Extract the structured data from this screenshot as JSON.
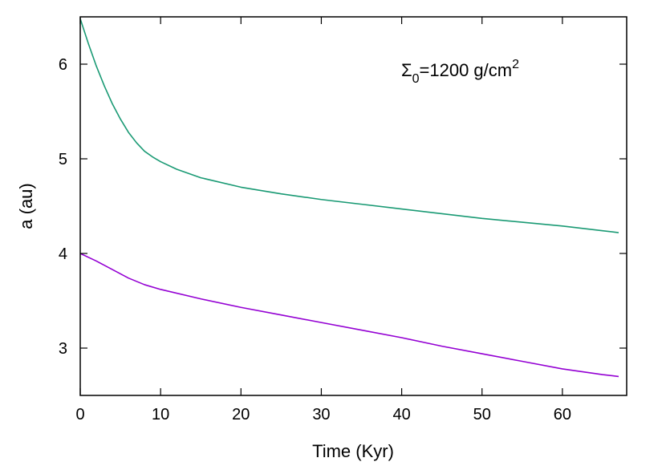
{
  "chart_data": {
    "type": "line",
    "xlabel": "Time (Kyr)",
    "ylabel": "a (au)",
    "xlim": [
      0,
      68
    ],
    "ylim": [
      2.5,
      6.5
    ],
    "xticks": [
      0,
      10,
      20,
      30,
      40,
      50,
      60
    ],
    "yticks": [
      3,
      4,
      5,
      6
    ],
    "grid": false,
    "annotation": {
      "symbol": "Σ",
      "subscript": "0",
      "text": "=1200 g/cm",
      "superscript": "2"
    },
    "series": [
      {
        "color": "#1a9a74",
        "x": [
          0,
          1,
          2,
          3,
          4,
          5,
          6,
          7,
          8,
          9,
          10,
          12,
          15,
          20,
          25,
          30,
          35,
          40,
          45,
          50,
          55,
          60,
          65,
          67
        ],
        "y": [
          6.48,
          6.22,
          5.98,
          5.77,
          5.58,
          5.42,
          5.28,
          5.17,
          5.08,
          5.02,
          4.97,
          4.89,
          4.8,
          4.7,
          4.63,
          4.57,
          4.52,
          4.47,
          4.42,
          4.37,
          4.33,
          4.29,
          4.24,
          4.22
        ]
      },
      {
        "color": "#9400d3",
        "x": [
          0,
          2,
          4,
          6,
          8,
          10,
          15,
          20,
          25,
          30,
          35,
          40,
          45,
          50,
          55,
          60,
          65,
          67
        ],
        "y": [
          4.0,
          3.92,
          3.83,
          3.74,
          3.67,
          3.62,
          3.52,
          3.43,
          3.35,
          3.27,
          3.19,
          3.11,
          3.02,
          2.94,
          2.86,
          2.78,
          2.72,
          2.7
        ]
      }
    ]
  }
}
